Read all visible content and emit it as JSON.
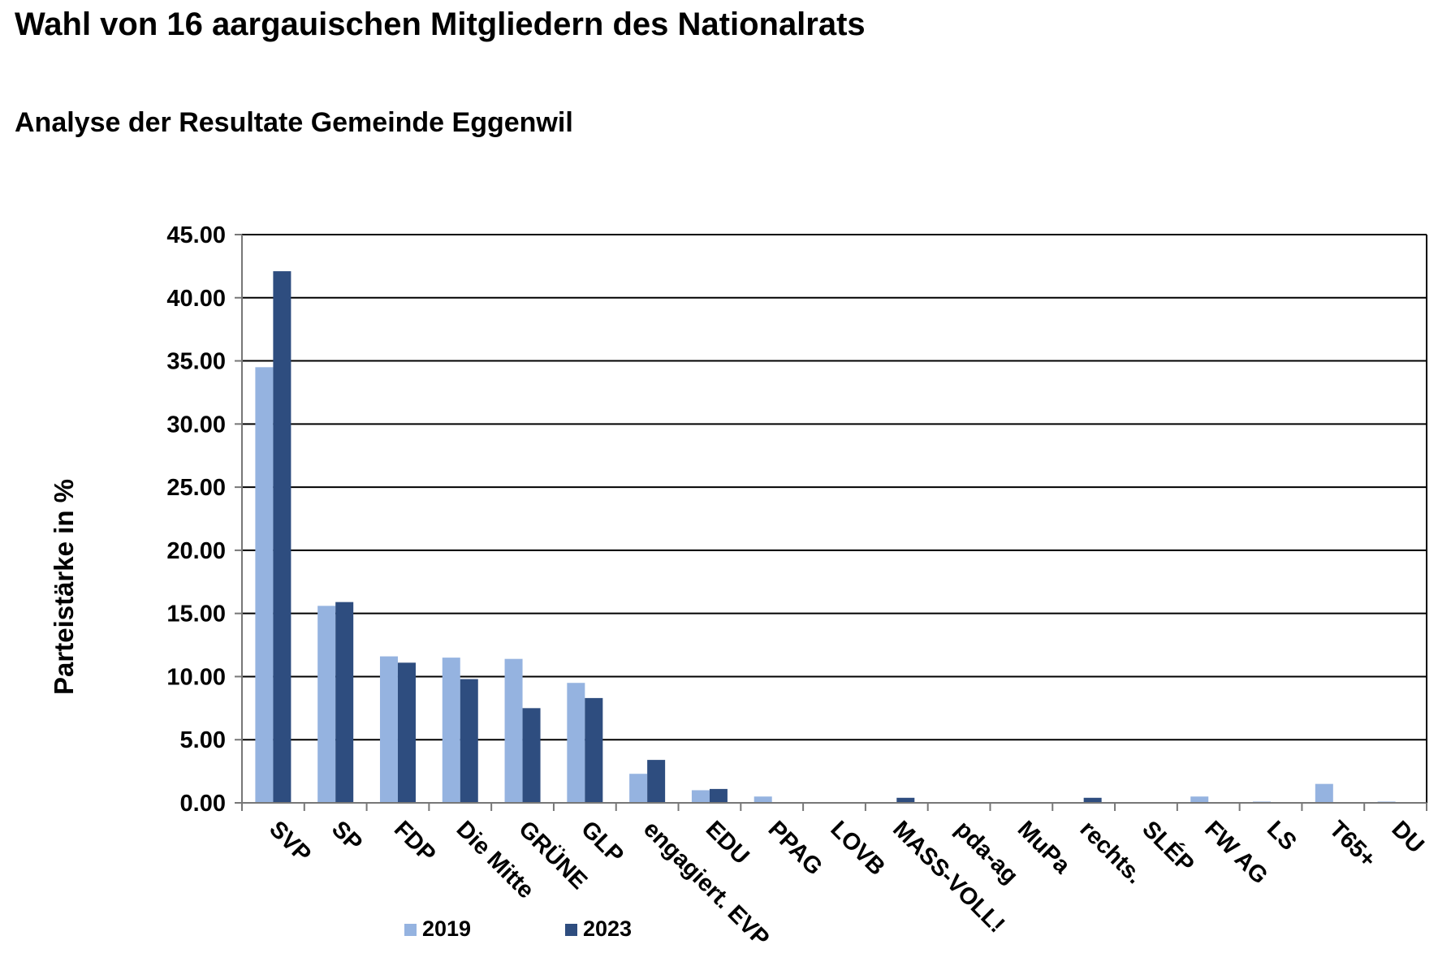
{
  "title": "Wahl von 16 aargauischen Mitgliedern des Nationalrats",
  "subtitle": "Analyse der Resultate Gemeinde Eggenwil",
  "colors": {
    "2019": "#95b3e0",
    "2023": "#2e4d7f"
  },
  "chart_data": {
    "type": "bar",
    "title": "Wahl von 16 aargauischen Mitgliedern des Nationalrats",
    "subtitle": "Analyse der Resultate Gemeinde Eggenwil",
    "xlabel": "",
    "ylabel": "Parteistärke in %",
    "ylim": [
      0,
      45
    ],
    "yticks": [
      "0.00",
      "5.00",
      "10.00",
      "15.00",
      "20.00",
      "25.00",
      "30.00",
      "35.00",
      "40.00",
      "45.00"
    ],
    "grid": true,
    "legend_position": "bottom-left",
    "categories": [
      "SVP",
      "SP",
      "FDP",
      "Die Mitte",
      "GRÜNE",
      "GLP",
      "engagiert. EVP",
      "EDU",
      "PPAG",
      "LOVB",
      "MASS-VOLL!",
      "pda-ag",
      "MuPa",
      "rechts.",
      "SLÉP",
      "FW AG",
      "LS",
      "T65+",
      "DU"
    ],
    "series": [
      {
        "name": "2019",
        "values": [
          34.5,
          15.6,
          11.6,
          11.5,
          11.4,
          9.5,
          2.3,
          1.0,
          0.5,
          0,
          0,
          0,
          0,
          0,
          0,
          0.5,
          0.1,
          1.5,
          0.1
        ]
      },
      {
        "name": "2023",
        "values": [
          42.1,
          15.9,
          11.1,
          9.8,
          7.5,
          8.3,
          3.4,
          1.1,
          0,
          0,
          0.4,
          0,
          0,
          0.4,
          0,
          0,
          0,
          0,
          0
        ]
      }
    ]
  }
}
